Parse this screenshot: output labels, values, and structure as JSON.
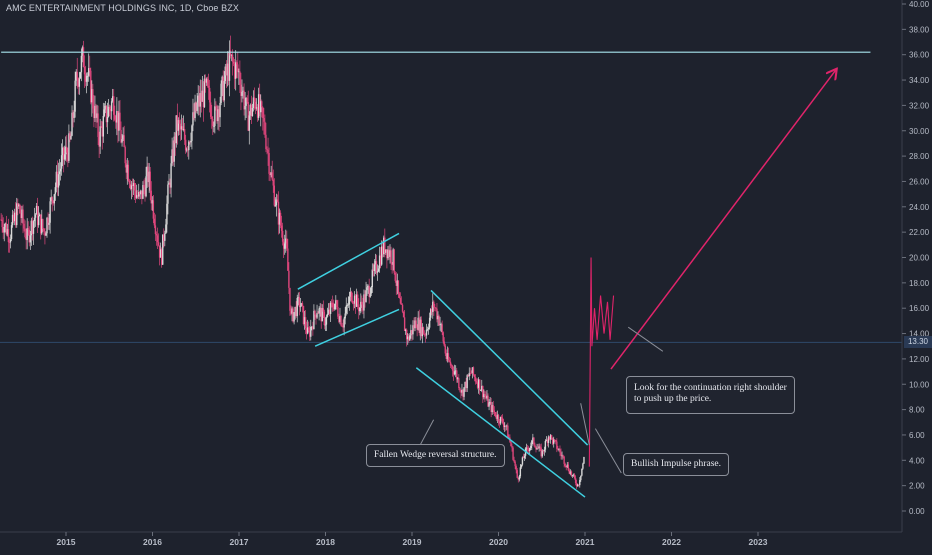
{
  "header": {
    "title": "AMC ENTERTAINMENT HOLDINGS INC, 1D, Cboe BZX"
  },
  "price_badge": "13.30",
  "annotations": {
    "wedge": "Fallen Wedge reversal structure.",
    "impulse": "Bullish Impulse phrase.",
    "shoulder_line1": "Look for the continuation right shoulder",
    "shoulder_line2": "to push up the price."
  },
  "colors": {
    "background": "#1e222d",
    "up_candle": "#d9d9d9",
    "down_candle": "#e0467c",
    "trendline": "#3fd0e0",
    "resistance": "#a8e6ef",
    "projection": "#e0246a",
    "current_price_line": "#2f4a6a"
  },
  "chart_data": {
    "type": "line",
    "title": "AMC ENTERTAINMENT HOLDINGS INC, 1D, Cboe BZX",
    "xlabel": "",
    "ylabel": "",
    "x_ticks": [
      "2015",
      "2016",
      "2017",
      "2018",
      "2019",
      "2020",
      "2021",
      "2022",
      "2023"
    ],
    "y_ticks": [
      "0.00",
      "2.00",
      "4.00",
      "6.00",
      "8.00",
      "10.00",
      "12.00",
      "14.00",
      "16.00",
      "18.00",
      "20.00",
      "22.00",
      "24.00",
      "26.00",
      "28.00",
      "30.00",
      "32.00",
      "34.00",
      "36.00",
      "38.00",
      "40.00"
    ],
    "ylim": [
      -0.5,
      40.5
    ],
    "xlim": [
      2014.2,
      2024.4
    ],
    "current_price": 13.3,
    "resistance_level": 36.2,
    "series": [
      {
        "values": [
          [
            2014.25,
            23.0
          ],
          [
            2014.35,
            21.8
          ],
          [
            2014.45,
            24.0
          ],
          [
            2014.55,
            21.5
          ],
          [
            2014.65,
            23.5
          ],
          [
            2014.75,
            22.0
          ],
          [
            2014.85,
            25.0
          ],
          [
            2014.95,
            27.5
          ],
          [
            2015.05,
            29.0
          ],
          [
            2015.12,
            34.0
          ],
          [
            2015.2,
            35.8
          ],
          [
            2015.28,
            33.5
          ],
          [
            2015.38,
            29.5
          ],
          [
            2015.45,
            31.0
          ],
          [
            2015.55,
            32.5
          ],
          [
            2015.65,
            29.0
          ],
          [
            2015.75,
            26.0
          ],
          [
            2015.85,
            24.5
          ],
          [
            2015.95,
            26.5
          ],
          [
            2016.05,
            22.0
          ],
          [
            2016.1,
            19.8
          ],
          [
            2016.18,
            25.0
          ],
          [
            2016.28,
            30.5
          ],
          [
            2016.4,
            29.0
          ],
          [
            2016.52,
            32.0
          ],
          [
            2016.62,
            33.2
          ],
          [
            2016.72,
            31.0
          ],
          [
            2016.82,
            33.5
          ],
          [
            2016.9,
            35.5
          ],
          [
            2017.0,
            34.5
          ],
          [
            2017.1,
            31.0
          ],
          [
            2017.2,
            32.5
          ],
          [
            2017.3,
            30.0
          ],
          [
            2017.38,
            26.0
          ],
          [
            2017.45,
            23.5
          ],
          [
            2017.55,
            20.5
          ],
          [
            2017.6,
            15.2
          ],
          [
            2017.7,
            16.5
          ],
          [
            2017.8,
            13.8
          ],
          [
            2017.9,
            16.0
          ],
          [
            2018.0,
            15.0
          ],
          [
            2018.1,
            16.5
          ],
          [
            2018.2,
            14.8
          ],
          [
            2018.3,
            17.2
          ],
          [
            2018.4,
            16.0
          ],
          [
            2018.5,
            17.5
          ],
          [
            2018.6,
            19.5
          ],
          [
            2018.68,
            21.0
          ],
          [
            2018.78,
            20.0
          ],
          [
            2018.85,
            16.5
          ],
          [
            2018.95,
            13.5
          ],
          [
            2019.05,
            15.0
          ],
          [
            2019.15,
            14.0
          ],
          [
            2019.25,
            16.3
          ],
          [
            2019.32,
            15.0
          ],
          [
            2019.4,
            12.0
          ],
          [
            2019.5,
            11.0
          ],
          [
            2019.58,
            9.3
          ],
          [
            2019.68,
            11.0
          ],
          [
            2019.78,
            10.0
          ],
          [
            2019.88,
            8.5
          ],
          [
            2019.98,
            7.5
          ],
          [
            2020.08,
            6.8
          ],
          [
            2020.15,
            5.0
          ],
          [
            2020.22,
            2.5
          ],
          [
            2020.3,
            4.5
          ],
          [
            2020.4,
            5.5
          ],
          [
            2020.5,
            4.5
          ],
          [
            2020.58,
            6.0
          ],
          [
            2020.68,
            5.0
          ],
          [
            2020.76,
            4.0
          ],
          [
            2020.85,
            2.8
          ],
          [
            2020.92,
            2.0
          ],
          [
            2021.0,
            4.5
          ]
        ]
      },
      {
        "values": [
          [
            2021.05,
            3.5
          ],
          [
            2021.07,
            20.0
          ],
          [
            2021.08,
            13.0
          ],
          [
            2021.11,
            16.0
          ],
          [
            2021.14,
            13.5
          ],
          [
            2021.18,
            17.0
          ],
          [
            2021.22,
            14.0
          ],
          [
            2021.26,
            16.5
          ],
          [
            2021.29,
            13.5
          ],
          [
            2021.33,
            17.0
          ]
        ]
      }
    ],
    "trendlines": [
      {
        "from": [
          2017.68,
          17.5
        ],
        "to": [
          2018.85,
          21.9
        ]
      },
      {
        "from": [
          2017.88,
          13.0
        ],
        "to": [
          2018.85,
          15.9
        ]
      },
      {
        "from": [
          2019.22,
          17.4
        ],
        "to": [
          2021.03,
          5.2
        ]
      },
      {
        "from": [
          2019.05,
          11.3
        ],
        "to": [
          2021.0,
          1.1
        ]
      },
      {
        "from": [
          2014.25,
          36.2
        ],
        "to": [
          2024.3,
          36.2
        ]
      }
    ],
    "projection": {
      "from": [
        2021.3,
        11.2
      ],
      "to": [
        2023.9,
        34.8
      ]
    },
    "note_pointers": [
      {
        "from": [
          2019.25,
          7.2
        ],
        "to": [
          2019.0,
          4.0
        ]
      },
      {
        "from": [
          2021.12,
          6.5
        ],
        "to": [
          2021.42,
          3.0
        ]
      },
      {
        "from": [
          2020.95,
          8.5
        ],
        "to": [
          2021.05,
          5.2
        ]
      },
      {
        "from": [
          2021.9,
          12.6
        ],
        "to": [
          2021.5,
          14.5
        ]
      }
    ]
  }
}
